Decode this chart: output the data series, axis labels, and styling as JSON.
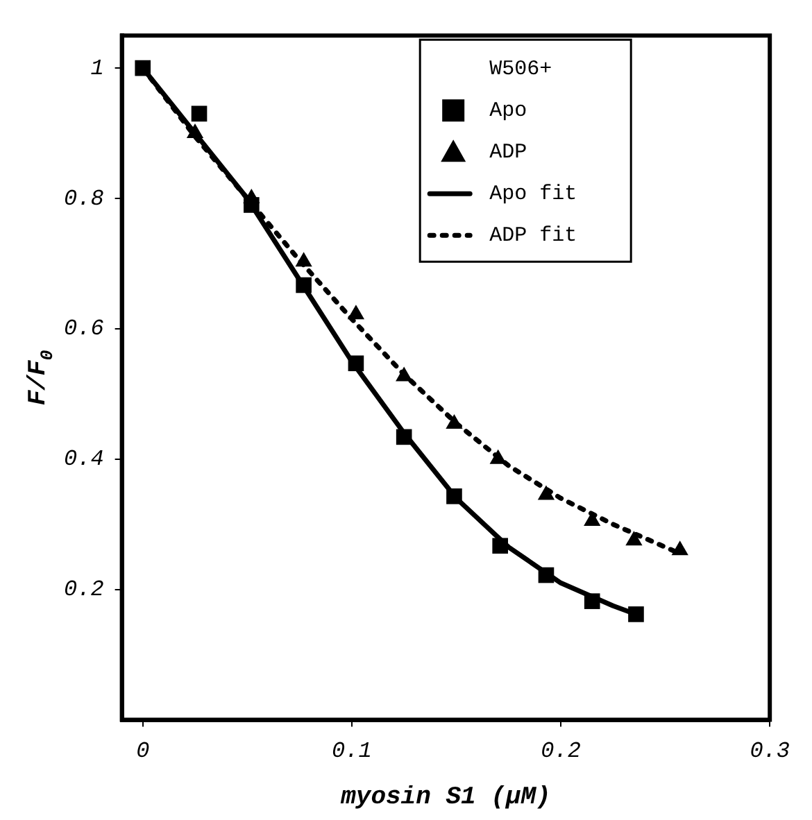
{
  "chart_data": {
    "type": "scatter",
    "xlabel": "myosin S1 (μM)",
    "ylabel": "F/F$_{0}$",
    "legend_title": "W506+",
    "xlim": [
      -0.01,
      0.3
    ],
    "ylim": [
      0,
      1.05
    ],
    "xticks": [
      0,
      0.1,
      0.2,
      0.3
    ],
    "yticks": [
      0.2,
      0.4,
      0.6,
      0.8,
      1
    ],
    "grid": false,
    "legend": "top right",
    "series": [
      {
        "name": "Apo",
        "type": "scatter",
        "marker": "square",
        "color": "#000000",
        "x": [
          0,
          0.027,
          0.052,
          0.077,
          0.102,
          0.125,
          0.149,
          0.171,
          0.193,
          0.215,
          0.236
        ],
        "values": [
          1.0,
          0.93,
          0.79,
          0.667,
          0.547,
          0.434,
          0.343,
          0.267,
          0.222,
          0.182,
          0.162
        ]
      },
      {
        "name": "ADP",
        "type": "scatter",
        "marker": "triangle",
        "color": "#000000",
        "x": [
          0.025,
          0.052,
          0.077,
          0.102,
          0.125,
          0.149,
          0.17,
          0.193,
          0.215,
          0.235,
          0.257
        ],
        "values": [
          0.9,
          0.8,
          0.703,
          0.622,
          0.527,
          0.454,
          0.4,
          0.345,
          0.305,
          0.275,
          0.26
        ]
      },
      {
        "name": "Apo fit",
        "type": "line",
        "marker": "none",
        "line_style": "solid",
        "color": "#000000",
        "x": [
          0,
          0.025,
          0.05,
          0.075,
          0.1,
          0.125,
          0.15,
          0.175,
          0.2,
          0.225,
          0.236
        ],
        "values": [
          1.0,
          0.9,
          0.8,
          0.675,
          0.55,
          0.44,
          0.34,
          0.265,
          0.21,
          0.175,
          0.162
        ]
      },
      {
        "name": "ADP fit",
        "type": "line",
        "marker": "none",
        "line_style": "dotted",
        "color": "#000000",
        "x": [
          0,
          0.025,
          0.05,
          0.075,
          0.1,
          0.125,
          0.15,
          0.175,
          0.2,
          0.225,
          0.25,
          0.257
        ],
        "values": [
          1.0,
          0.895,
          0.8,
          0.705,
          0.615,
          0.53,
          0.455,
          0.39,
          0.34,
          0.3,
          0.265,
          0.255
        ]
      }
    ]
  }
}
